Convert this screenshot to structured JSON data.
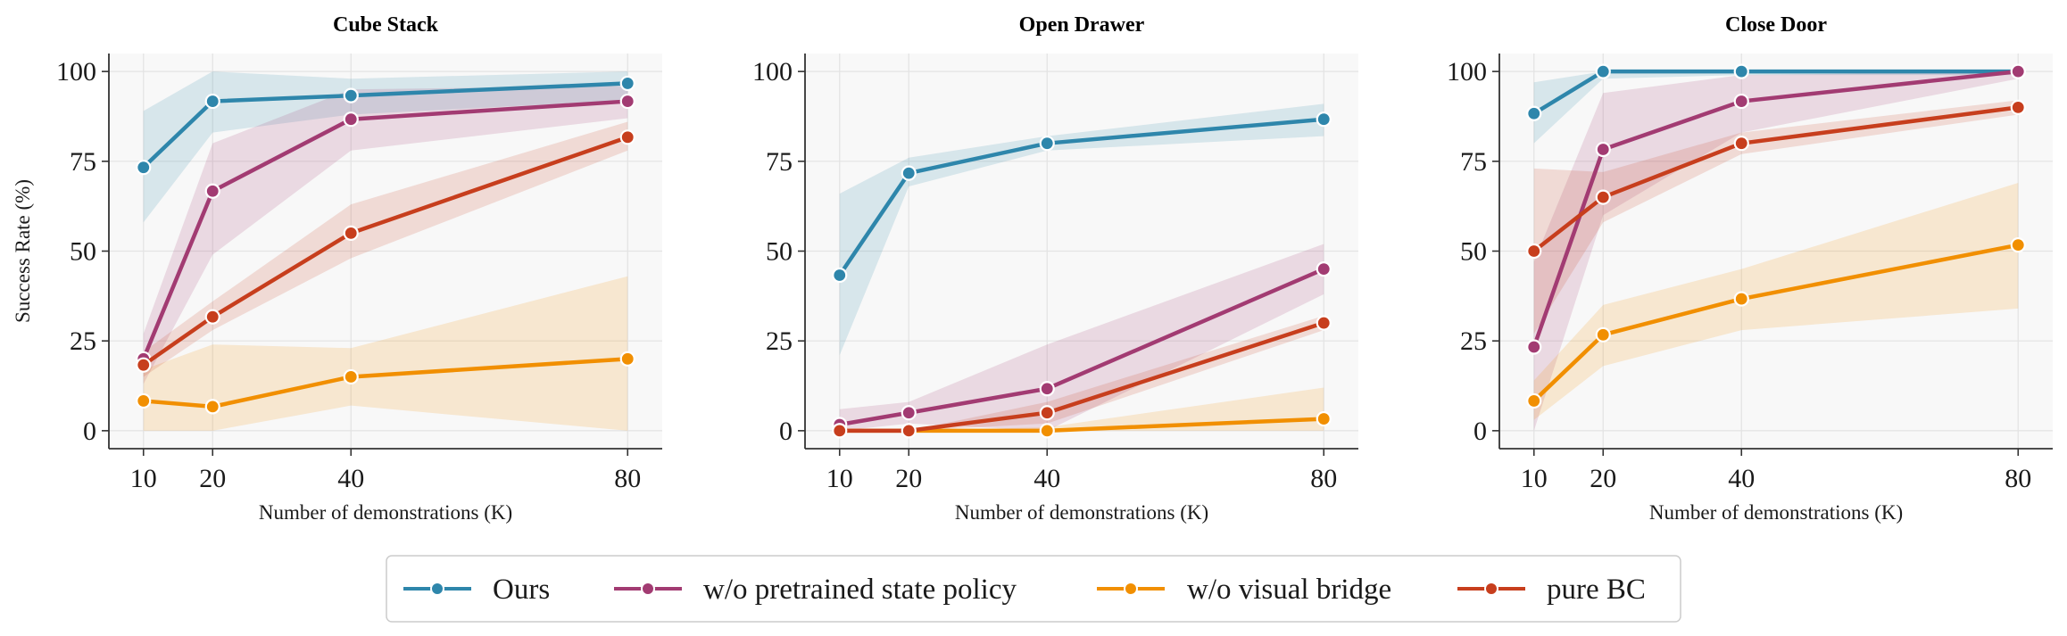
{
  "figure": {
    "ylabel": "Success Rate (%)",
    "xlabel": "Number of demonstrations (K)"
  },
  "legend": {
    "items": [
      {
        "label": "Ours",
        "color": "#2e86ab"
      },
      {
        "label": "w/o pretrained state policy",
        "color": "#a23b72"
      },
      {
        "label": "w/o visual bridge",
        "color": "#f18f01"
      },
      {
        "label": "pure BC",
        "color": "#c73e1d"
      }
    ]
  },
  "chart_data": [
    {
      "type": "line",
      "title": "Cube Stack",
      "xlabel": "Number of demonstrations (K)",
      "ylabel": "Success Rate (%)",
      "x": [
        10,
        20,
        40,
        80
      ],
      "xticks": [
        "10",
        "20",
        "40",
        "80"
      ],
      "yticks": [
        "0",
        "25",
        "50",
        "75",
        "100"
      ],
      "xlim": [
        5,
        85
      ],
      "ylim": [
        -5,
        105
      ],
      "grid": true,
      "series": [
        {
          "name": "Ours",
          "color": "#2e86ab",
          "values": [
            73.3,
            91.7,
            93.3,
            96.7
          ],
          "lower": [
            58,
            83,
            88,
            92
          ],
          "upper": [
            89,
            100,
            98,
            100
          ]
        },
        {
          "name": "w/o pretrained state policy",
          "color": "#a23b72",
          "values": [
            20,
            66.7,
            86.7,
            91.7
          ],
          "lower": [
            13,
            49,
            78,
            87
          ],
          "upper": [
            27,
            80,
            95,
            96
          ]
        },
        {
          "name": "w/o visual bridge",
          "color": "#f18f01",
          "values": [
            8.3,
            6.7,
            15,
            20
          ],
          "lower": [
            0,
            0,
            7,
            0
          ],
          "upper": [
            17,
            24,
            23,
            43
          ]
        },
        {
          "name": "pure BC",
          "color": "#c73e1d",
          "values": [
            18.3,
            31.7,
            55,
            81.7
          ],
          "lower": [
            15,
            28,
            48,
            78
          ],
          "upper": [
            22,
            36,
            63,
            86
          ]
        }
      ]
    },
    {
      "type": "line",
      "title": "Open Drawer",
      "xlabel": "Number of demonstrations (K)",
      "ylabel": "Success Rate (%)",
      "x": [
        10,
        20,
        40,
        80
      ],
      "xticks": [
        "10",
        "20",
        "40",
        "80"
      ],
      "yticks": [
        "0",
        "25",
        "50",
        "75",
        "100"
      ],
      "xlim": [
        5,
        85
      ],
      "ylim": [
        -5,
        105
      ],
      "grid": true,
      "series": [
        {
          "name": "Ours",
          "color": "#2e86ab",
          "values": [
            43.3,
            71.7,
            80,
            86.7
          ],
          "lower": [
            21,
            68,
            78,
            82
          ],
          "upper": [
            66,
            76,
            82,
            91
          ]
        },
        {
          "name": "w/o pretrained state policy",
          "color": "#a23b72",
          "values": [
            1.7,
            5,
            11.7,
            45
          ],
          "lower": [
            0,
            2,
            0,
            38
          ],
          "upper": [
            6,
            8,
            24,
            52
          ]
        },
        {
          "name": "w/o visual bridge",
          "color": "#f18f01",
          "values": [
            0,
            0,
            0,
            3.3
          ],
          "lower": [
            0,
            0,
            0,
            0
          ],
          "upper": [
            0,
            0,
            1,
            12
          ]
        },
        {
          "name": "pure BC",
          "color": "#c73e1d",
          "values": [
            0,
            0,
            5,
            30
          ],
          "lower": [
            0,
            0,
            2,
            28
          ],
          "upper": [
            0,
            0,
            8,
            32
          ]
        }
      ]
    },
    {
      "type": "line",
      "title": "Close Door",
      "xlabel": "Number of demonstrations (K)",
      "ylabel": "Success Rate (%)",
      "x": [
        10,
        20,
        40,
        80
      ],
      "xticks": [
        "10",
        "20",
        "40",
        "80"
      ],
      "yticks": [
        "0",
        "25",
        "50",
        "75",
        "100"
      ],
      "xlim": [
        5,
        85
      ],
      "ylim": [
        -5,
        105
      ],
      "grid": true,
      "series": [
        {
          "name": "Ours",
          "color": "#2e86ab",
          "values": [
            88.3,
            100,
            100,
            100
          ],
          "lower": [
            80,
            98,
            99,
            99
          ],
          "upper": [
            97,
            100,
            100,
            100
          ]
        },
        {
          "name": "w/o pretrained state policy",
          "color": "#a23b72",
          "values": [
            23.3,
            78.3,
            91.7,
            100
          ],
          "lower": [
            0,
            60,
            83,
            98
          ],
          "upper": [
            47,
            94,
            99,
            100
          ]
        },
        {
          "name": "w/o visual bridge",
          "color": "#f18f01",
          "values": [
            8.3,
            26.7,
            36.7,
            51.7
          ],
          "lower": [
            3,
            18,
            28,
            34
          ],
          "upper": [
            14,
            35,
            45,
            69
          ]
        },
        {
          "name": "pure BC",
          "color": "#c73e1d",
          "values": [
            50,
            65,
            80,
            90
          ],
          "lower": [
            27,
            58,
            77,
            88
          ],
          "upper": [
            73,
            72,
            83,
            92
          ]
        }
      ]
    }
  ]
}
